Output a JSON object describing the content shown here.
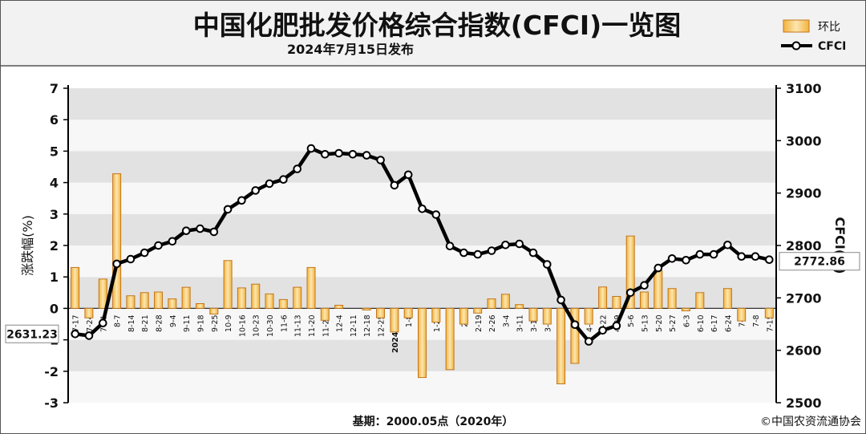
{
  "header": {
    "title": "中国化肥批发价格综合指数(CFCI)一览图",
    "subtitle": "2024年7月15日发布"
  },
  "footer": {
    "base": "基期：2000.05点（2020年）",
    "copyright": "©中国农资流通协会"
  },
  "legend": {
    "bar_label": "环比",
    "line_label": "CFCI"
  },
  "colors": {
    "bar_fill": "#f2b33d",
    "bar_light": "#fce6b0",
    "bar_edge": "#c2761b",
    "line": "#000000",
    "band_dark": "#e2e2e2",
    "band_light": "#f7f7f7",
    "header_bg": "#f2f2f2"
  },
  "chart_data": {
    "type": "bar+line",
    "title": "中国化肥批发价格综合指数(CFCI)一览图",
    "subtitle": "2024年7月15日发布",
    "ylabel_left": "涨跌幅(%)",
    "ylabel_right": "CFCI(点)",
    "ylim_left": [
      -3,
      7
    ],
    "ylim_right": [
      2500,
      3100
    ],
    "yticks_left": [
      "7",
      "6",
      "5",
      "4",
      "3",
      "2",
      "1",
      "0",
      "-1",
      "-2",
      "-3"
    ],
    "yticks_right": [
      "3100",
      "3000",
      "2900",
      "2800",
      "2700",
      "2600",
      "2500"
    ],
    "grid": "horizontal bands",
    "legend_position": "top-right",
    "x_tick_labels": [
      "7-17",
      "7-24",
      "7-31",
      "8-7",
      "8-14",
      "8-21",
      "8-28",
      "9-4",
      "9-11",
      "9-18",
      "9-25",
      "10-9",
      "10-16",
      "10-23",
      "10-30",
      "11-6",
      "11-13",
      "11-20",
      "11-27",
      "12-4",
      "12-11",
      "12-18",
      "12-25",
      "2024-1-1",
      "1-8",
      "1-15",
      "1-22",
      "1-29",
      "2-5",
      "2-19",
      "2-26",
      "3-4",
      "3-11",
      "3-18",
      "3-25",
      "4-1",
      "4-8",
      "4-15",
      "4-22",
      "4-29",
      "5-6",
      "5-13",
      "5-20",
      "5-27",
      "6-3",
      "6-10",
      "6-17",
      "6-24",
      "7-1",
      "7-8",
      "7-15"
    ],
    "series": [
      {
        "name": "环比",
        "axis": "left",
        "type": "bar",
        "values": [
          1.3,
          -0.3,
          0.93,
          4.28,
          0.4,
          0.5,
          0.52,
          0.3,
          0.67,
          0.15,
          -0.18,
          1.52,
          0.65,
          0.77,
          0.46,
          0.28,
          0.67,
          1.3,
          -0.38,
          0.1,
          0.0,
          -0.05,
          -0.3,
          -0.75,
          -0.3,
          -2.2,
          -0.44,
          -1.95,
          -0.5,
          -0.15,
          0.3,
          0.45,
          0.12,
          -0.4,
          -0.5,
          -2.4,
          -1.75,
          -0.5,
          0.68,
          0.38,
          2.3,
          0.52,
          1.2,
          0.63,
          -0.08,
          0.5,
          0.0,
          0.63,
          -0.4,
          0.0,
          -0.3
        ]
      },
      {
        "name": "CFCI",
        "axis": "right",
        "type": "line",
        "values": [
          2631.23,
          2628,
          2652,
          2765,
          2774,
          2786,
          2800,
          2808,
          2828,
          2832,
          2826,
          2869,
          2886,
          2905,
          2918,
          2926,
          2946,
          2985,
          2974,
          2976,
          2974,
          2972,
          2963,
          2915,
          2935,
          2870,
          2859,
          2799,
          2786,
          2783,
          2790,
          2801,
          2803,
          2786,
          2764,
          2696,
          2649,
          2617,
          2638,
          2647,
          2710,
          2724,
          2757,
          2775,
          2772,
          2783,
          2783,
          2801,
          2779,
          2779,
          2772.86
        ]
      }
    ],
    "annotations": [
      {
        "label": "2631.23",
        "anchor": "left"
      },
      {
        "label": "2772.86",
        "anchor": "right"
      }
    ]
  }
}
